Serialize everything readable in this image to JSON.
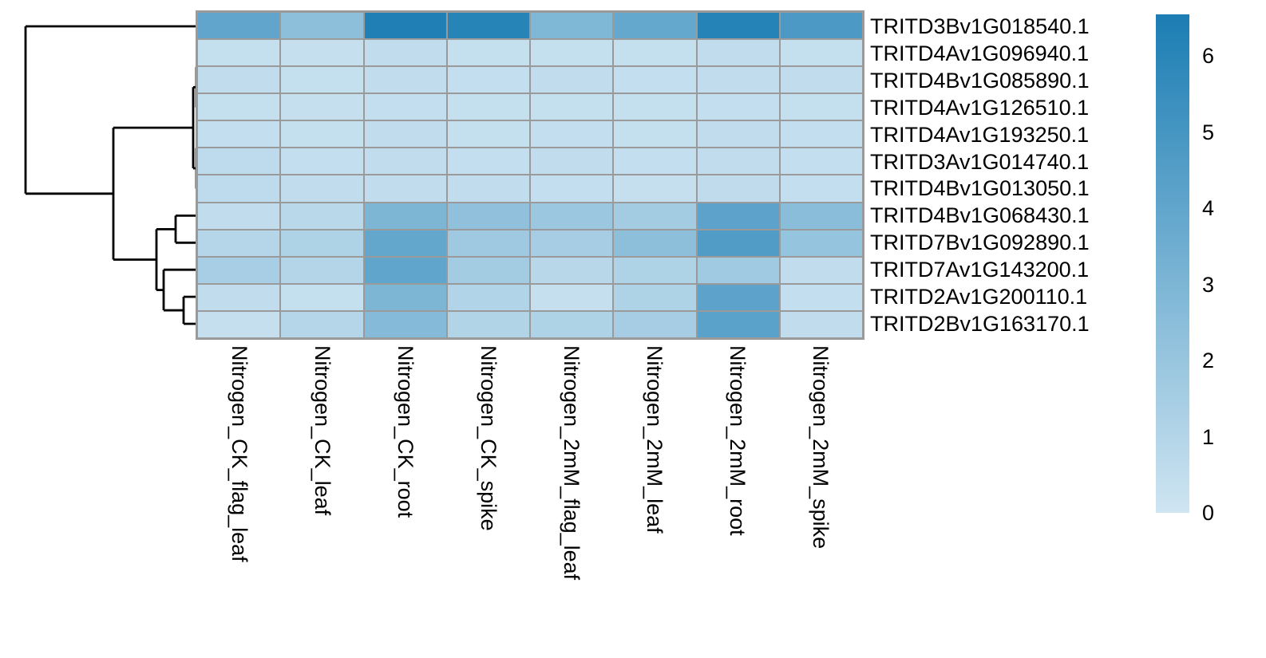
{
  "figure": {
    "kind": "clustered-heatmap",
    "background": "#ffffff",
    "grid_line_color": "#9a9a9a",
    "dendrogram_color": "#000000"
  },
  "chart_data": {
    "type": "heatmap",
    "title": "",
    "columns": [
      "Nitrogen_CK_flag_leaf",
      "Nitrogen_CK_leaf",
      "Nitrogen_CK_root",
      "Nitrogen_CK_spike",
      "Nitrogen_2mM_flag_leaf",
      "Nitrogen_2mM_leaf",
      "Nitrogen_2mM_root",
      "Nitrogen_2mM_spike"
    ],
    "rows": [
      "TRITD3Bv1G018540.1",
      "TRITD4Av1G096940.1",
      "TRITD4Bv1G085890.1",
      "TRITD4Av1G126510.1",
      "TRITD4Av1G193250.1",
      "TRITD3Av1G014740.1",
      "TRITD4Bv1G013050.1",
      "TRITD4Bv1G068430.1",
      "TRITD7Bv1G092890.1",
      "TRITD7Av1G143200.1",
      "TRITD2Av1G200110.1",
      "TRITD2Bv1G163170.1"
    ],
    "values": [
      [
        4.0,
        2.4,
        6.35,
        6.1,
        2.9,
        3.85,
        6.15,
        4.8
      ],
      [
        0.4,
        0.35,
        0.5,
        0.4,
        0.4,
        0.4,
        0.5,
        0.4
      ],
      [
        0.5,
        0.4,
        0.5,
        0.45,
        0.5,
        0.45,
        0.5,
        0.5
      ],
      [
        0.4,
        0.35,
        0.45,
        0.4,
        0.4,
        0.4,
        0.45,
        0.4
      ],
      [
        0.45,
        0.4,
        0.5,
        0.4,
        0.45,
        0.4,
        0.5,
        0.45
      ],
      [
        0.65,
        0.45,
        0.55,
        0.45,
        0.55,
        0.45,
        0.5,
        0.45
      ],
      [
        0.65,
        0.5,
        0.5,
        0.5,
        0.45,
        0.35,
        0.6,
        0.45
      ],
      [
        0.5,
        0.8,
        3.0,
        2.3,
        1.9,
        1.6,
        4.2,
        2.55
      ],
      [
        0.95,
        1.2,
        3.9,
        1.75,
        1.5,
        2.4,
        4.6,
        2.1
      ],
      [
        1.45,
        1.0,
        4.05,
        1.6,
        0.85,
        1.2,
        1.7,
        0.55
      ],
      [
        0.55,
        0.4,
        3.0,
        1.05,
        0.35,
        1.2,
        4.2,
        0.45
      ],
      [
        0.35,
        0.95,
        2.7,
        1.1,
        1.2,
        1.5,
        4.25,
        0.55
      ]
    ],
    "colorbar": {
      "ticks": [
        6,
        5,
        4,
        3,
        2,
        1,
        0
      ],
      "min": 0,
      "max": 6.55,
      "color_low": "#cfe5f2",
      "color_high": "#1b7db3",
      "position": "right"
    },
    "legend_position": "right",
    "grid": true,
    "row_dendrogram_side": "left"
  },
  "dendrogram": {
    "segments": [
      [
        32,
        33.0,
        248,
        33.0
      ],
      [
        32,
        33.0,
        32,
        242.8
      ],
      [
        32,
        242.8,
        142,
        242.8
      ],
      [
        142,
        160.1,
        142,
        325.5
      ],
      [
        142,
        160.1,
        242,
        160.1
      ],
      [
        142,
        325.5,
        196,
        325.5
      ],
      [
        248,
        66.9,
        248,
        100.8
      ],
      [
        246,
        83.85,
        248,
        83.85
      ],
      [
        246,
        83.85,
        246,
        134.7
      ],
      [
        246,
        134.7,
        248,
        134.7
      ],
      [
        242,
        109.3,
        246,
        109.3
      ],
      [
        248,
        168.6,
        248,
        202.5
      ],
      [
        246,
        185.55,
        248,
        185.55
      ],
      [
        246,
        185.55,
        246,
        236.5
      ],
      [
        246,
        236.5,
        248,
        236.5
      ],
      [
        242,
        211.0,
        246,
        211.0
      ],
      [
        242,
        109.3,
        242,
        211.0
      ],
      [
        220,
        270.4,
        248,
        270.4
      ],
      [
        220,
        304.3,
        248,
        304.3
      ],
      [
        220,
        270.4,
        220,
        304.3
      ],
      [
        196,
        287.35,
        220,
        287.35
      ],
      [
        205,
        338.2,
        248,
        338.2
      ],
      [
        230,
        372.1,
        248,
        372.1
      ],
      [
        230,
        406.0,
        248,
        406.0
      ],
      [
        230,
        372.1,
        230,
        406.0
      ],
      [
        205,
        389.05,
        230,
        389.05
      ],
      [
        205,
        338.2,
        205,
        389.05
      ],
      [
        196,
        363.6,
        205,
        363.6
      ],
      [
        196,
        287.35,
        196,
        363.6
      ]
    ]
  }
}
